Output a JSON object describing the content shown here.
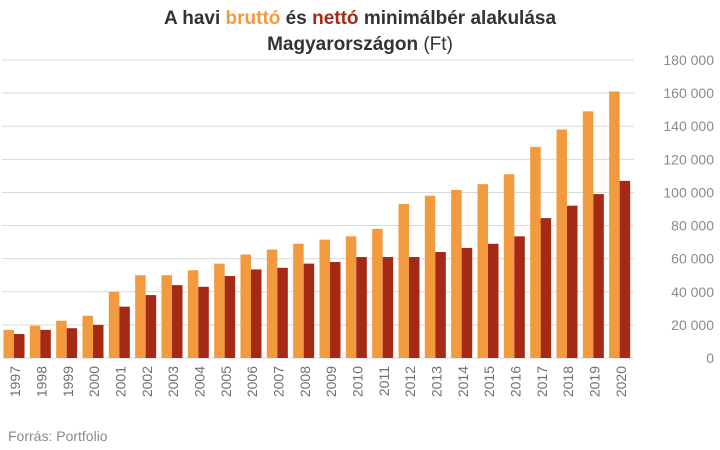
{
  "title": {
    "line1_prefix": "A havi ",
    "word_gross": "bruttó",
    "line1_middle": " és ",
    "word_net": "nettó",
    "line1_suffix": " minimálbér alakulása",
    "line2_main": "Magyarországon",
    "line2_unit": " (Ft)"
  },
  "source": "Forrás: Portfolio",
  "colors": {
    "gross": "#f39a3e",
    "net": "#a52a16",
    "grid": "#d9d9d9"
  },
  "chart_data": {
    "type": "bar",
    "categories": [
      "1997",
      "1998",
      "1999",
      "2000",
      "2001",
      "2002",
      "2003",
      "2004",
      "2005",
      "2006",
      "2007",
      "2008",
      "2009",
      "2010",
      "2011",
      "2012",
      "2013",
      "2014",
      "2015",
      "2016",
      "2017",
      "2018",
      "2019",
      "2020"
    ],
    "series": [
      {
        "name": "bruttó",
        "values": [
          17000,
          19500,
          22500,
          25500,
          40000,
          50000,
          50000,
          53000,
          57000,
          62500,
          65500,
          69000,
          71500,
          73500,
          78000,
          93000,
          98000,
          101500,
          105000,
          111000,
          127500,
          138000,
          149000,
          161000
        ]
      },
      {
        "name": "nettó",
        "values": [
          14500,
          17000,
          18000,
          20000,
          31000,
          38000,
          44000,
          43000,
          49500,
          53500,
          54500,
          57000,
          58000,
          61000,
          61000,
          61000,
          64000,
          66500,
          69000,
          73500,
          84500,
          92000,
          99000,
          107000
        ]
      }
    ],
    "ylim": [
      0,
      180000
    ],
    "yticks": [
      "0",
      "20 000",
      "40 000",
      "60 000",
      "80 000",
      "100 000",
      "120 000",
      "140 000",
      "160 000",
      "180 000"
    ],
    "grid": true,
    "xlabel": "",
    "ylabel": ""
  }
}
